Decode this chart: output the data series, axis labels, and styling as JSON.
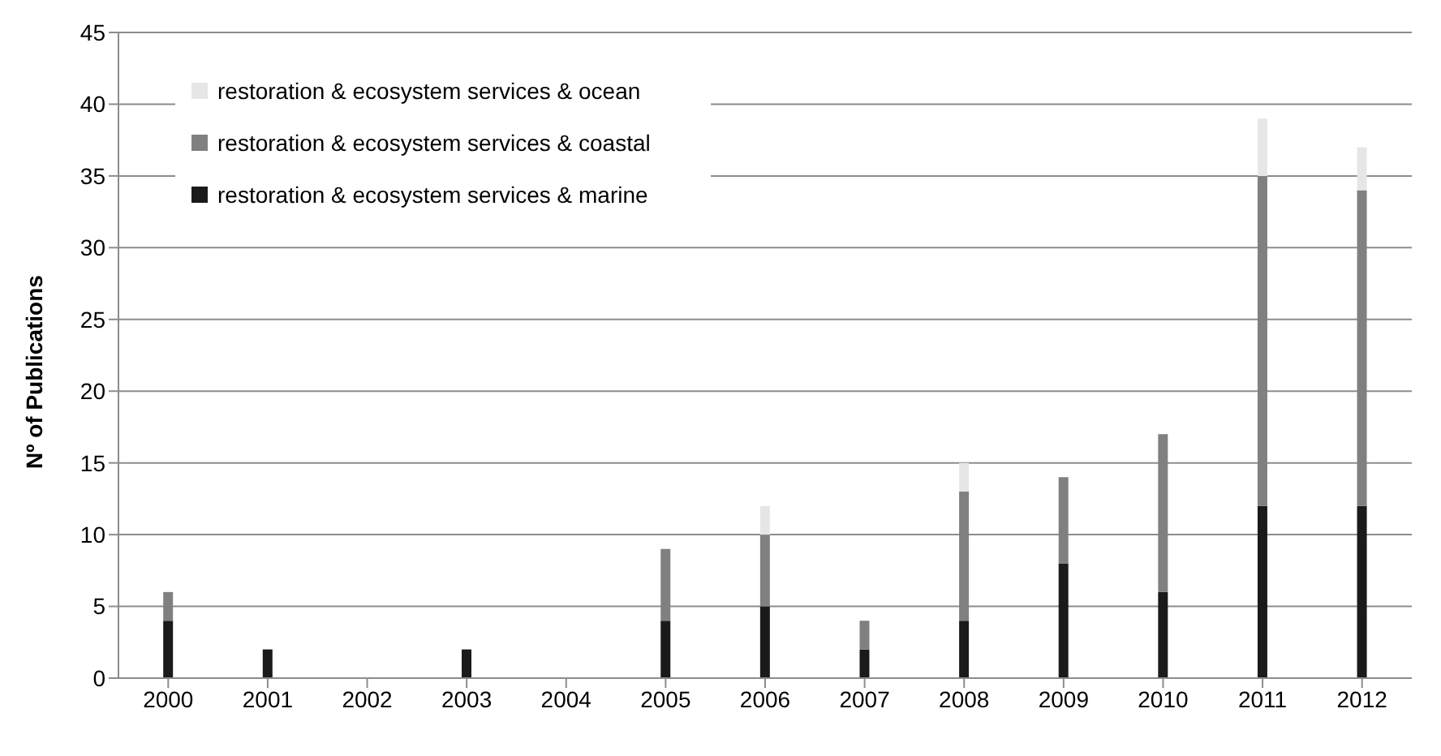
{
  "chart_data": {
    "type": "bar",
    "stacked": true,
    "ylabel": "Nº of Publications",
    "categories": [
      "2000",
      "2001",
      "2002",
      "2003",
      "2004",
      "2005",
      "2006",
      "2007",
      "2008",
      "2009",
      "2010",
      "2011",
      "2012"
    ],
    "series": [
      {
        "name": "restoration & ecosystem services & marine",
        "color": "#1a1a1a",
        "values": [
          4,
          2,
          0,
          2,
          0,
          4,
          5,
          2,
          4,
          8,
          6,
          12,
          12
        ]
      },
      {
        "name": "restoration & ecosystem services & coastal",
        "color": "#808080",
        "values": [
          2,
          0,
          0,
          0,
          0,
          5,
          5,
          2,
          9,
          6,
          11,
          23,
          22
        ]
      },
      {
        "name": "restoration & ecosystem services & ocean",
        "color": "#e6e6e6",
        "values": [
          0,
          0,
          0,
          0,
          0,
          0,
          2,
          0,
          2,
          0,
          0,
          4,
          3
        ]
      }
    ],
    "ylim": [
      0,
      45
    ],
    "yticks": [
      0,
      5,
      10,
      15,
      20,
      25,
      30,
      35,
      40,
      45
    ],
    "grid": "y",
    "legend": "top left"
  }
}
